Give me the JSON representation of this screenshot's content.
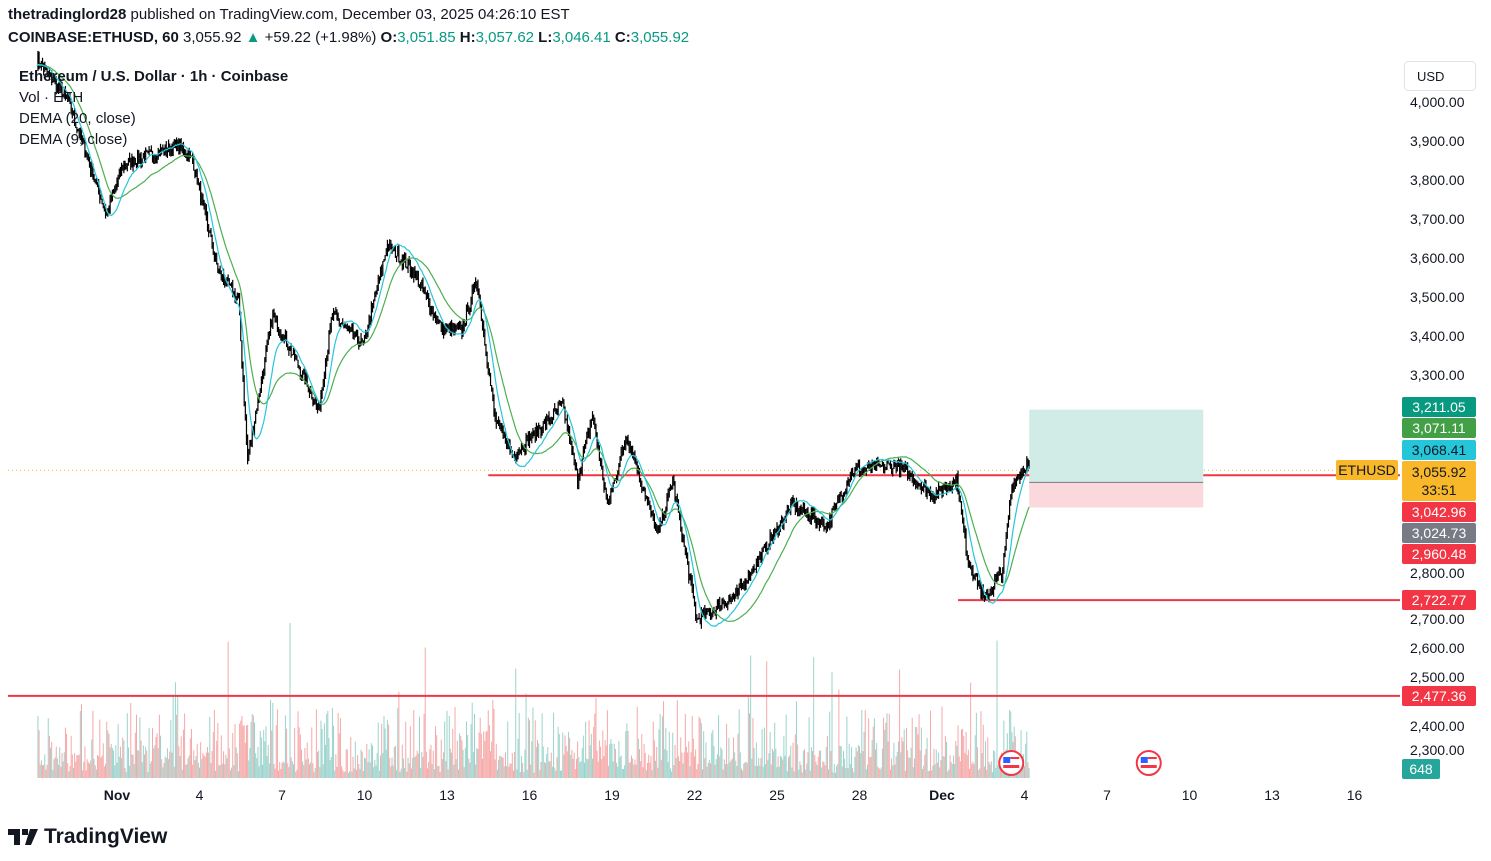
{
  "header": {
    "publisher": "thetradinglord28",
    "published_text": "published on TradingView.com, December 03, 2025 04:26:10 EST",
    "symbol": "COINBASE:ETHUSD, 60",
    "last": "3,055.92",
    "change": "+59.22 (+1.98%)",
    "o_label": "O:",
    "o": "3,051.85",
    "h_label": "H:",
    "h": "3,057.62",
    "l_label": "L:",
    "l": "3,046.41",
    "c_label": "C:",
    "c": "3,055.92",
    "up_icon": "triangle-up-icon"
  },
  "legend": {
    "title": "Ethereum / U.S. Dollar · 1h · Coinbase",
    "vol": "Vol · ETH",
    "dema20": "DEMA (20, close)",
    "dema9": "DEMA (9, close)"
  },
  "currency_button": "USD",
  "symbol_tag": "ETHUSD",
  "countdown": "33:51",
  "footer": {
    "logo": "TradingView"
  },
  "colors": {
    "up": "#26a69a",
    "down": "#ef5350",
    "line": "#f23645",
    "dema20": "#4caf50",
    "dema9": "#26c6da",
    "price_tag": "#f9b82a",
    "target_fill": "#d1ece6",
    "stop_fill": "#fbd8db"
  },
  "chart_data": {
    "type": "candlestick",
    "interval": "1h",
    "y_axis": {
      "side": "right",
      "range": [
        2300,
        4100
      ],
      "ticks": [
        "4,000.00",
        "3,900.00",
        "3,800.00",
        "3,700.00",
        "3,600.00",
        "3,500.00",
        "3,400.00",
        "3,300.00",
        "2,800.00",
        "2,700.00",
        "2,600.00",
        "2,500.00",
        "2,400.00",
        "2,300.00"
      ]
    },
    "x_axis": {
      "ticks": [
        "Nov",
        "4",
        "7",
        "10",
        "13",
        "16",
        "19",
        "22",
        "25",
        "28",
        "Dec",
        "4",
        "7",
        "10",
        "13",
        "16"
      ],
      "tick_days": [
        1,
        4,
        7,
        10,
        13,
        16,
        19,
        22,
        25,
        28,
        31,
        34,
        37,
        40,
        43,
        46
      ]
    },
    "price_path": [
      [
        "2025-10-29 02:00",
        4108
      ],
      [
        "2025-10-30 05:00",
        4005
      ],
      [
        "2025-10-31 15:00",
        3710
      ],
      [
        "2025-11-01 05:00",
        3838
      ],
      [
        "2025-11-03 05:00",
        3890
      ],
      [
        "2025-11-03 18:00",
        3851
      ],
      [
        "2025-11-04 16:00",
        3569
      ],
      [
        "2025-11-05 10:00",
        3492
      ],
      [
        "2025-11-05 18:00",
        3082
      ],
      [
        "2025-11-06 16:00",
        3454
      ],
      [
        "2025-11-07 18:00",
        3300
      ],
      [
        "2025-11-08 08:00",
        3210
      ],
      [
        "2025-11-08 20:00",
        3454
      ],
      [
        "2025-11-09 23:00",
        3377
      ],
      [
        "2025-11-10 20:00",
        3633
      ],
      [
        "2025-11-11 18:00",
        3569
      ],
      [
        "2025-11-12 20:00",
        3415
      ],
      [
        "2025-11-13 13:00",
        3415
      ],
      [
        "2025-11-14 02:00",
        3544
      ],
      [
        "2025-11-14 18:00",
        3185
      ],
      [
        "2025-11-15 10:00",
        3095
      ],
      [
        "2025-11-17 05:00",
        3223
      ],
      [
        "2025-11-17 18:00",
        3031
      ],
      [
        "2025-11-18 07:00",
        3197
      ],
      [
        "2025-11-18 20:00",
        2967
      ],
      [
        "2025-11-19 13:00",
        3146
      ],
      [
        "2025-11-20 16:00",
        2890
      ],
      [
        "2025-11-21 05:00",
        3031
      ],
      [
        "2025-11-22 02:00",
        2672
      ],
      [
        "2025-11-23 13:00",
        2736
      ],
      [
        "2025-11-25 13:00",
        2967
      ],
      [
        "2025-11-26 20:00",
        2915
      ],
      [
        "2025-11-27 18:00",
        3056
      ],
      [
        "2025-11-29 10:00",
        3069
      ],
      [
        "2025-11-30 16:00",
        2992
      ],
      [
        "2025-12-01 13:00",
        3031
      ],
      [
        "2025-12-01 22:00",
        2838
      ],
      [
        "2025-12-02 13:00",
        2723
      ],
      [
        "2025-12-03 05:00",
        2800
      ],
      [
        "2025-12-03 13:00",
        3018
      ],
      [
        "2025-12-04 02:00",
        3069
      ],
      [
        "2025-12-04 05:00",
        3056
      ]
    ],
    "indicators": [
      {
        "name": "DEMA (20, close)",
        "color": "#4caf50",
        "last": "3,071.11"
      },
      {
        "name": "DEMA (9, close)",
        "color": "#26c6da",
        "last": "3,068.41"
      }
    ],
    "volume": {
      "unit": "ETH",
      "last": "648"
    },
    "horizontal_lines": [
      {
        "price": 3042.96,
        "label": "3,042.96",
        "from": "2025-11-14 12:00"
      },
      {
        "price": 2722.77,
        "label": "2,722.77",
        "from": "2025-12-01 14:00"
      },
      {
        "price": 2477.36,
        "label": "2,477.36",
        "from": "start"
      }
    ],
    "long_position": {
      "target": 3211.05,
      "target_label": "3,211.05",
      "entry": 3024.73,
      "entry_label": "3,024.73",
      "stop": 2960.48,
      "stop_label": "2,960.48",
      "from": "2025-12-04 05:00",
      "to": "2025-12-10 12:00"
    },
    "last_price": 3055.92,
    "last_price_label": "3,055.92",
    "events": [
      {
        "icon": "us-flag-icon",
        "day": 34.1
      },
      {
        "icon": "us-flag-icon",
        "day": 39.1
      }
    ]
  }
}
